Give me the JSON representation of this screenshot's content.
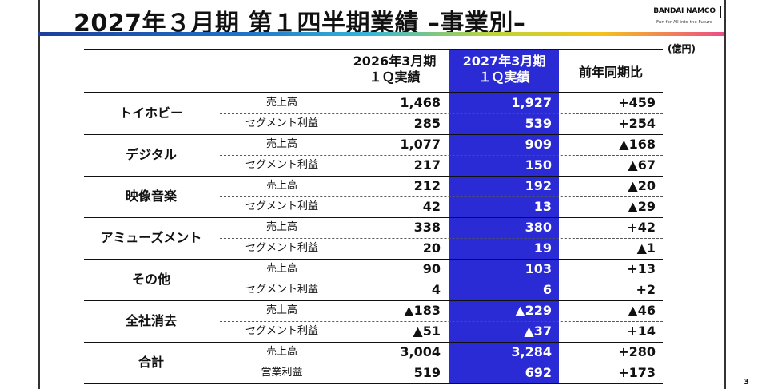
{
  "title": "2027年３月期 第１四半期業績 –事業別–",
  "brand": {
    "logo_text": "BANDAI NAMCO",
    "tagline": "Fun for All into the Future"
  },
  "unit": "(億円)",
  "page_number": "3",
  "columns": [
    {
      "line1": "2026年3月期",
      "line2": "１Ｑ実績"
    },
    {
      "line1": "2027年3月期",
      "line2": "１Ｑ実績"
    },
    {
      "line1": "前年同期比",
      "line2": ""
    }
  ],
  "segments": [
    {
      "name": "トイホビー",
      "rows": [
        {
          "metric": "売上高",
          "values": [
            "1,468",
            "1,927",
            "+459"
          ]
        },
        {
          "metric": "セグメント利益",
          "values": [
            "285",
            "539",
            "+254"
          ]
        }
      ]
    },
    {
      "name": "デジタル",
      "rows": [
        {
          "metric": "売上高",
          "values": [
            "1,077",
            "909",
            "▲168"
          ]
        },
        {
          "metric": "セグメント利益",
          "values": [
            "217",
            "150",
            "▲67"
          ]
        }
      ]
    },
    {
      "name": "映像音楽",
      "rows": [
        {
          "metric": "売上高",
          "values": [
            "212",
            "192",
            "▲20"
          ]
        },
        {
          "metric": "セグメント利益",
          "values": [
            "42",
            "13",
            "▲29"
          ]
        }
      ]
    },
    {
      "name": "アミューズメント",
      "rows": [
        {
          "metric": "売上高",
          "values": [
            "338",
            "380",
            "+42"
          ]
        },
        {
          "metric": "セグメント利益",
          "values": [
            "20",
            "19",
            "▲1"
          ]
        }
      ]
    },
    {
      "name": "その他",
      "rows": [
        {
          "metric": "売上高",
          "values": [
            "90",
            "103",
            "+13"
          ]
        },
        {
          "metric": "セグメント利益",
          "values": [
            "4",
            "6",
            "+2"
          ]
        }
      ]
    },
    {
      "name": "全社消去",
      "rows": [
        {
          "metric": "売上高",
          "values": [
            "▲183",
            "▲229",
            "▲46"
          ]
        },
        {
          "metric": "セグメント利益",
          "values": [
            "▲51",
            "▲37",
            "+14"
          ]
        }
      ]
    },
    {
      "name": "合計",
      "rows": [
        {
          "metric": "売上高",
          "values": [
            "3,004",
            "3,284",
            "+280"
          ]
        },
        {
          "metric": "営業利益",
          "values": [
            "519",
            "692",
            "+173"
          ]
        }
      ]
    }
  ]
}
